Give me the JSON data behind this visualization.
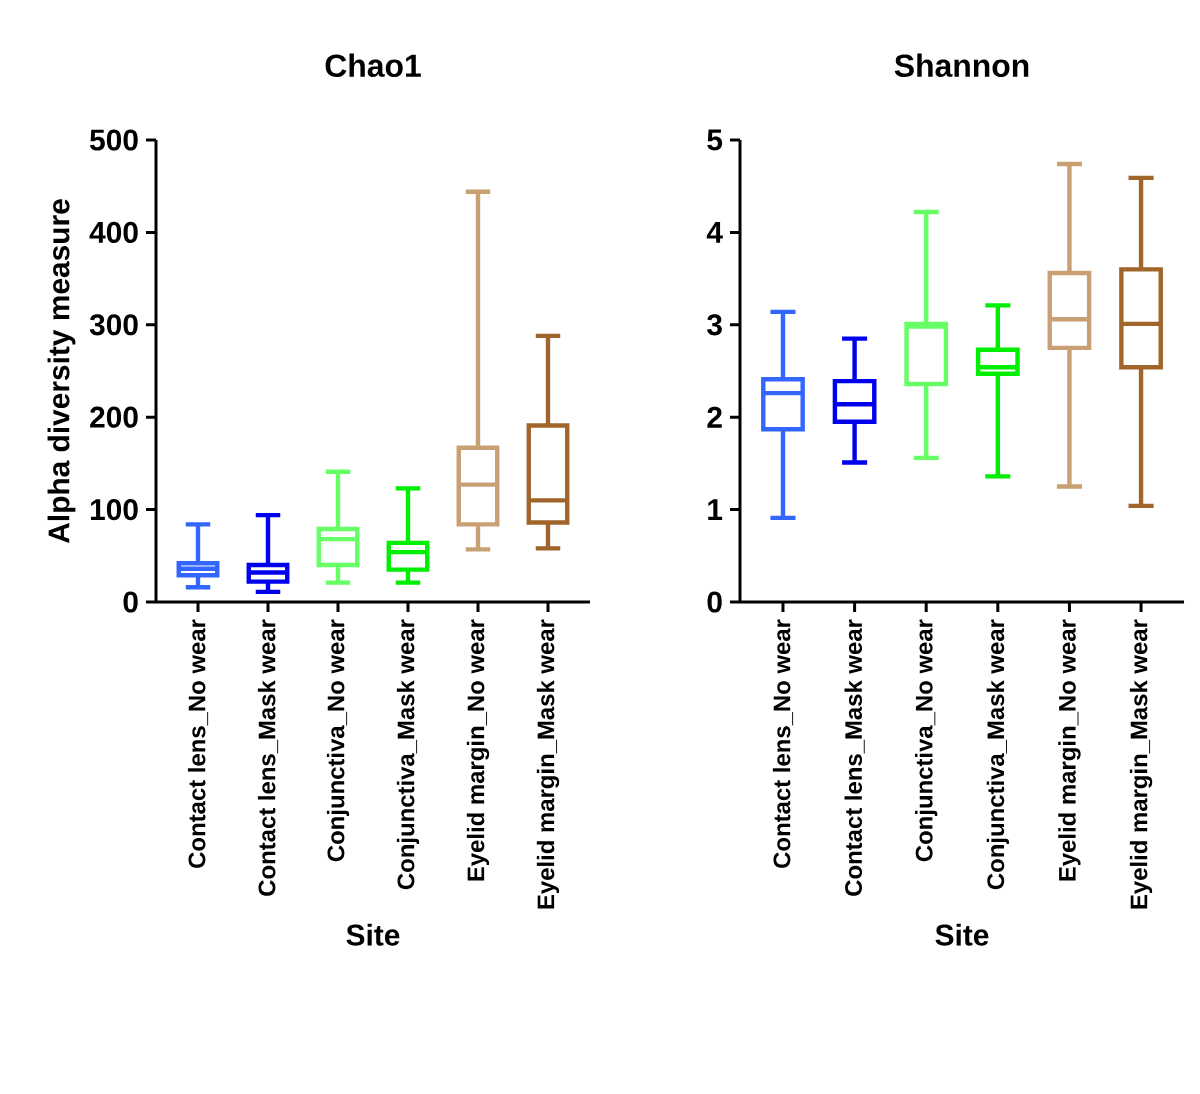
{
  "chart_data": [
    {
      "type": "box",
      "title": "Chao1",
      "xlabel": "Site",
      "ylabel": "Alpha diversity measure",
      "categories": [
        "Contact lens_No wear",
        "Contact lens_Mask wear",
        "Conjunctiva_No wear",
        "Conjunctiva_Mask wear",
        "Eyelid margin_No wear",
        "Eyelid margin_Mask wear"
      ],
      "colors": [
        "#3366ff",
        "#0000ee",
        "#66ff66",
        "#00ee00",
        "#c8a074",
        "#a0652a"
      ],
      "boxes": [
        {
          "low": 16,
          "q1": 29,
          "median": 36,
          "q3": 42,
          "high": 84
        },
        {
          "low": 11,
          "q1": 22,
          "median": 32,
          "q3": 40,
          "high": 94
        },
        {
          "low": 21,
          "q1": 40,
          "median": 68,
          "q3": 79,
          "high": 141
        },
        {
          "low": 21,
          "q1": 35,
          "median": 54,
          "q3": 64,
          "high": 123
        },
        {
          "low": 57,
          "q1": 84,
          "median": 127,
          "q3": 167,
          "high": 444
        },
        {
          "low": 58,
          "q1": 86,
          "median": 110,
          "q3": 191,
          "high": 288
        }
      ],
      "ylim": [
        0,
        500
      ],
      "yticks": [
        0,
        100,
        200,
        300,
        400,
        500
      ]
    },
    {
      "type": "box",
      "title": "Shannon",
      "xlabel": "Site",
      "categories": [
        "Contact lens_No wear",
        "Contact lens_Mask wear",
        "Conjunctiva_No wear",
        "Conjunctiva_Mask wear",
        "Eyelid margin_No wear",
        "Eyelid margin_Mask wear"
      ],
      "colors": [
        "#3366ff",
        "#0000ee",
        "#66ff66",
        "#00ee00",
        "#c8a074",
        "#a0652a"
      ],
      "boxes": [
        {
          "low": 0.91,
          "q1": 1.87,
          "median": 2.26,
          "q3": 2.41,
          "high": 3.14
        },
        {
          "low": 1.51,
          "q1": 1.95,
          "median": 2.14,
          "q3": 2.39,
          "high": 2.85
        },
        {
          "low": 1.56,
          "q1": 2.36,
          "median": 2.98,
          "q3": 3.01,
          "high": 4.22
        },
        {
          "low": 1.36,
          "q1": 2.47,
          "median": 2.54,
          "q3": 2.73,
          "high": 3.21
        },
        {
          "low": 1.25,
          "q1": 2.75,
          "median": 3.06,
          "q3": 3.56,
          "high": 4.74
        },
        {
          "low": 1.04,
          "q1": 2.54,
          "median": 3.01,
          "q3": 3.6,
          "high": 4.59
        }
      ],
      "ylim": [
        0,
        5
      ],
      "yticks": [
        0,
        1,
        2,
        3,
        4,
        5
      ]
    }
  ]
}
